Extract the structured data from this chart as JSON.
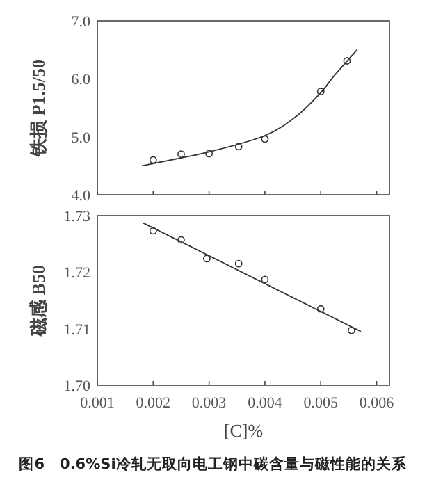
{
  "chart_data": [
    {
      "type": "scatter",
      "ylabel": "铁损 P1.5/50",
      "xlim": [
        0.001,
        0.00623
      ],
      "xticks": [
        0.001,
        0.002,
        0.003,
        0.004,
        0.005,
        0.006
      ],
      "ylim": [
        4.0,
        7.0
      ],
      "yticks": [
        {
          "value": 4,
          "label": "4.0"
        },
        {
          "value": 5,
          "label": "5.0"
        },
        {
          "value": 6,
          "label": "6.0"
        },
        {
          "value": 7,
          "label": "7.0"
        }
      ],
      "tick_labels": "y",
      "series": [
        {
          "marker": "circle",
          "color": "#333333",
          "x": [
            0.002,
            0.0025,
            0.003,
            0.00353,
            0.004,
            0.005,
            0.00547
          ],
          "values": [
            4.6,
            4.7,
            4.71,
            4.83,
            4.96,
            5.78,
            6.31
          ]
        },
        {
          "type": "line",
          "color": "#333333",
          "x": [
            0.0018,
            0.003,
            0.004,
            0.00457,
            0.005,
            0.00523,
            0.00565
          ],
          "values": [
            4.5,
            4.74,
            5.02,
            5.36,
            5.76,
            6.04,
            6.5
          ]
        }
      ]
    },
    {
      "type": "scatter",
      "ylabel": "磁感 B50",
      "xlabel": "[C]%",
      "xlim": [
        0.001,
        0.00623
      ],
      "xticks": [
        0.001,
        0.002,
        0.003,
        0.004,
        0.005,
        0.006
      ],
      "ylim": [
        1.7,
        1.73
      ],
      "yticks": [
        {
          "value": 1.7,
          "label": "1.70"
        },
        1.71,
        1.72,
        1.73
      ],
      "annotations": [
        "图6　0.6%Si冷轧无取向电工钢中碳含量与磁性能的关系"
      ],
      "series": [
        {
          "marker": "circle",
          "color": "#333333",
          "x": [
            0.002,
            0.0025,
            0.00296,
            0.00353,
            0.004,
            0.005,
            0.00555
          ],
          "values": [
            1.7273,
            1.7257,
            1.7224,
            1.7215,
            1.7187,
            1.7135,
            1.7097
          ]
        },
        {
          "type": "line",
          "color": "#333333",
          "x": [
            0.00182,
            0.00572
          ],
          "values": [
            1.7287,
            1.7095
          ]
        }
      ]
    }
  ]
}
